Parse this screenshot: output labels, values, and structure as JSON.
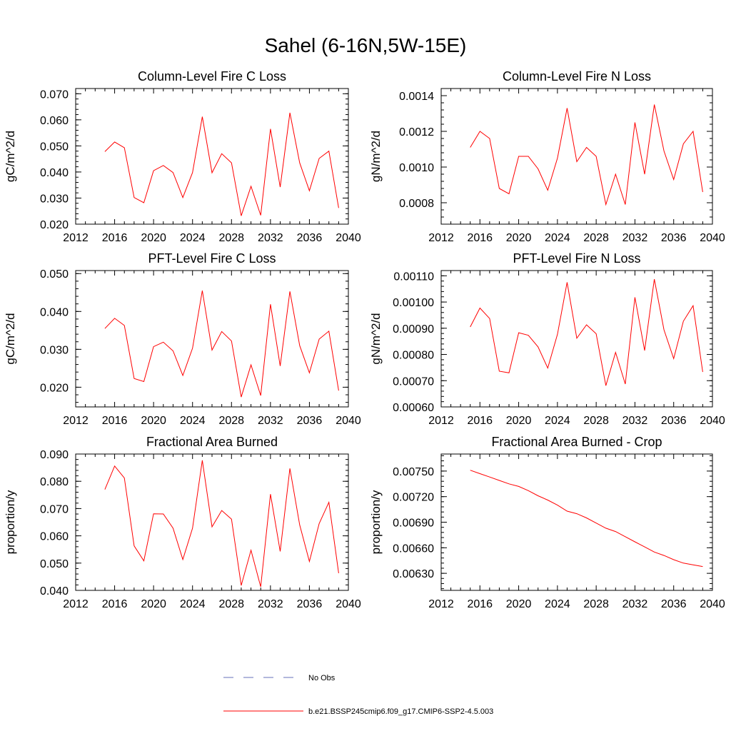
{
  "title": "Sahel (6-16N,5W-15E)",
  "colors": {
    "model": "#ff0000",
    "obs": "#6670b8",
    "axis": "#000000"
  },
  "legend": [
    {
      "label": "No Obs",
      "style": "dashed",
      "color": "#6670b8"
    },
    {
      "label": "b.e21.BSSP245cmip6.f09_g17.CMIP6-SSP2-4.5.003",
      "style": "solid",
      "color": "#ff0000"
    }
  ],
  "chart_data": [
    {
      "type": "line",
      "title": "Column-Level Fire C Loss",
      "ylabel": "gC/m^2/d",
      "xlim": [
        2012,
        2040
      ],
      "ylim": [
        0.02,
        0.072
      ],
      "xticks": [
        2012,
        2016,
        2020,
        2024,
        2028,
        2032,
        2036,
        2040
      ],
      "yticks": [
        0.02,
        0.03,
        0.04,
        0.05,
        0.06,
        0.07
      ],
      "ytick_labels": [
        "0.020",
        "0.030",
        "0.040",
        "0.050",
        "0.060",
        "0.070"
      ],
      "x": [
        2015,
        2016,
        2017,
        2018,
        2019,
        2020,
        2021,
        2022,
        2023,
        2024,
        2025,
        2026,
        2027,
        2028,
        2029,
        2030,
        2031,
        2032,
        2033,
        2034,
        2035,
        2036,
        2037,
        2038,
        2039
      ],
      "values": [
        0.0478,
        0.0515,
        0.0493,
        0.0302,
        0.0282,
        0.0405,
        0.0425,
        0.0398,
        0.0302,
        0.0398,
        0.0612,
        0.0397,
        0.047,
        0.0435,
        0.0232,
        0.0345,
        0.0234,
        0.0565,
        0.0342,
        0.0627,
        0.0435,
        0.0328,
        0.0452,
        0.048,
        0.0262
      ]
    },
    {
      "type": "line",
      "title": "Column-Level Fire N Loss",
      "ylabel": "gN/m^2/d",
      "xlim": [
        2012,
        2040
      ],
      "ylim": [
        0.00068,
        0.00144
      ],
      "xticks": [
        2012,
        2016,
        2020,
        2024,
        2028,
        2032,
        2036,
        2040
      ],
      "yticks": [
        0.0008,
        0.001,
        0.0012,
        0.0014
      ],
      "ytick_labels": [
        "0.0008",
        "0.0010",
        "0.0012",
        "0.0014"
      ],
      "x": [
        2015,
        2016,
        2017,
        2018,
        2019,
        2020,
        2021,
        2022,
        2023,
        2024,
        2025,
        2026,
        2027,
        2028,
        2029,
        2030,
        2031,
        2032,
        2033,
        2034,
        2035,
        2036,
        2037,
        2038,
        2039
      ],
      "values": [
        0.00111,
        0.0012,
        0.00116,
        0.00088,
        0.00085,
        0.00106,
        0.00106,
        0.00099,
        0.00087,
        0.00105,
        0.00133,
        0.00103,
        0.00111,
        0.00106,
        0.00079,
        0.00096,
        0.00079,
        0.00125,
        0.00096,
        0.00135,
        0.00109,
        0.00093,
        0.00113,
        0.0012,
        0.00086
      ]
    },
    {
      "type": "line",
      "title": "PFT-Level Fire C Loss",
      "ylabel": "gC/m^2/d",
      "xlim": [
        2012,
        2040
      ],
      "ylim": [
        0.0148,
        0.0508
      ],
      "xticks": [
        2012,
        2016,
        2020,
        2024,
        2028,
        2032,
        2036,
        2040
      ],
      "yticks": [
        0.02,
        0.03,
        0.04,
        0.05
      ],
      "ytick_labels": [
        "0.020",
        "0.030",
        "0.040",
        "0.050"
      ],
      "x": [
        2015,
        2016,
        2017,
        2018,
        2019,
        2020,
        2021,
        2022,
        2023,
        2024,
        2025,
        2026,
        2027,
        2028,
        2029,
        2030,
        2031,
        2032,
        2033,
        2034,
        2035,
        2036,
        2037,
        2038,
        2039
      ],
      "values": [
        0.0355,
        0.0382,
        0.0363,
        0.0223,
        0.0215,
        0.0307,
        0.0319,
        0.0296,
        0.0231,
        0.0303,
        0.0455,
        0.0298,
        0.0347,
        0.0322,
        0.0174,
        0.0259,
        0.0178,
        0.0419,
        0.0256,
        0.0453,
        0.031,
        0.0238,
        0.0327,
        0.0348,
        0.0191
      ]
    },
    {
      "type": "line",
      "title": "PFT-Level Fire N Loss",
      "ylabel": "gN/m^2/d",
      "xlim": [
        2012,
        2040
      ],
      "ylim": [
        0.0006,
        0.00112
      ],
      "xticks": [
        2012,
        2016,
        2020,
        2024,
        2028,
        2032,
        2036,
        2040
      ],
      "yticks": [
        0.0006,
        0.0007,
        0.0008,
        0.0009,
        0.001,
        0.0011
      ],
      "ytick_labels": [
        "0.00060",
        "0.00070",
        "0.00080",
        "0.00090",
        "0.00100",
        "0.00110"
      ],
      "x": [
        2015,
        2016,
        2017,
        2018,
        2019,
        2020,
        2021,
        2022,
        2023,
        2024,
        2025,
        2026,
        2027,
        2028,
        2029,
        2030,
        2031,
        2032,
        2033,
        2034,
        2035,
        2036,
        2037,
        2038,
        2039
      ],
      "values": [
        0.000905,
        0.000977,
        0.000937,
        0.000736,
        0.00073,
        0.000883,
        0.000873,
        0.000829,
        0.000748,
        0.000877,
        0.001075,
        0.000862,
        0.000913,
        0.000879,
        0.000681,
        0.000808,
        0.000687,
        0.001018,
        0.000815,
        0.001087,
        0.000894,
        0.000784,
        0.000927,
        0.000986,
        0.000733
      ]
    },
    {
      "type": "line",
      "title": "Fractional Area Burned",
      "ylabel": "proportion/y",
      "xlim": [
        2012,
        2040
      ],
      "ylim": [
        0.04,
        0.09
      ],
      "xticks": [
        2012,
        2016,
        2020,
        2024,
        2028,
        2032,
        2036,
        2040
      ],
      "yticks": [
        0.04,
        0.05,
        0.06,
        0.07,
        0.08,
        0.09
      ],
      "ytick_labels": [
        "0.040",
        "0.050",
        "0.060",
        "0.070",
        "0.080",
        "0.090"
      ],
      "x": [
        2015,
        2016,
        2017,
        2018,
        2019,
        2020,
        2021,
        2022,
        2023,
        2024,
        2025,
        2026,
        2027,
        2028,
        2029,
        2030,
        2031,
        2032,
        2033,
        2034,
        2035,
        2036,
        2037,
        2038,
        2039
      ],
      "values": [
        0.077,
        0.0856,
        0.0812,
        0.0563,
        0.0508,
        0.0681,
        0.068,
        0.0628,
        0.0513,
        0.0628,
        0.0877,
        0.0633,
        0.0693,
        0.0661,
        0.0418,
        0.0547,
        0.0413,
        0.0753,
        0.0543,
        0.0847,
        0.064,
        0.0506,
        0.0645,
        0.0723,
        0.0463
      ]
    },
    {
      "type": "line",
      "title": "Fractional Area Burned - Crop",
      "ylabel": "proportion/y",
      "xlim": [
        2012,
        2040
      ],
      "ylim": [
        0.0061,
        0.0077
      ],
      "xticks": [
        2012,
        2016,
        2020,
        2024,
        2028,
        2032,
        2036,
        2040
      ],
      "yticks": [
        0.0063,
        0.0066,
        0.0069,
        0.0072,
        0.0075
      ],
      "ytick_labels": [
        "0.00630",
        "0.00660",
        "0.00690",
        "0.00720",
        "0.00750"
      ],
      "x": [
        2015,
        2016,
        2017,
        2018,
        2019,
        2020,
        2021,
        2022,
        2023,
        2024,
        2025,
        2026,
        2027,
        2028,
        2029,
        2030,
        2031,
        2032,
        2033,
        2034,
        2035,
        2036,
        2037,
        2038,
        2039
      ],
      "values": [
        0.00751,
        0.00747,
        0.00743,
        0.00739,
        0.00735,
        0.00732,
        0.00727,
        0.00721,
        0.00716,
        0.0071,
        0.00703,
        0.007,
        0.00695,
        0.00689,
        0.00683,
        0.00679,
        0.00673,
        0.00667,
        0.00661,
        0.00655,
        0.00651,
        0.00646,
        0.00642,
        0.0064,
        0.00638
      ]
    }
  ]
}
